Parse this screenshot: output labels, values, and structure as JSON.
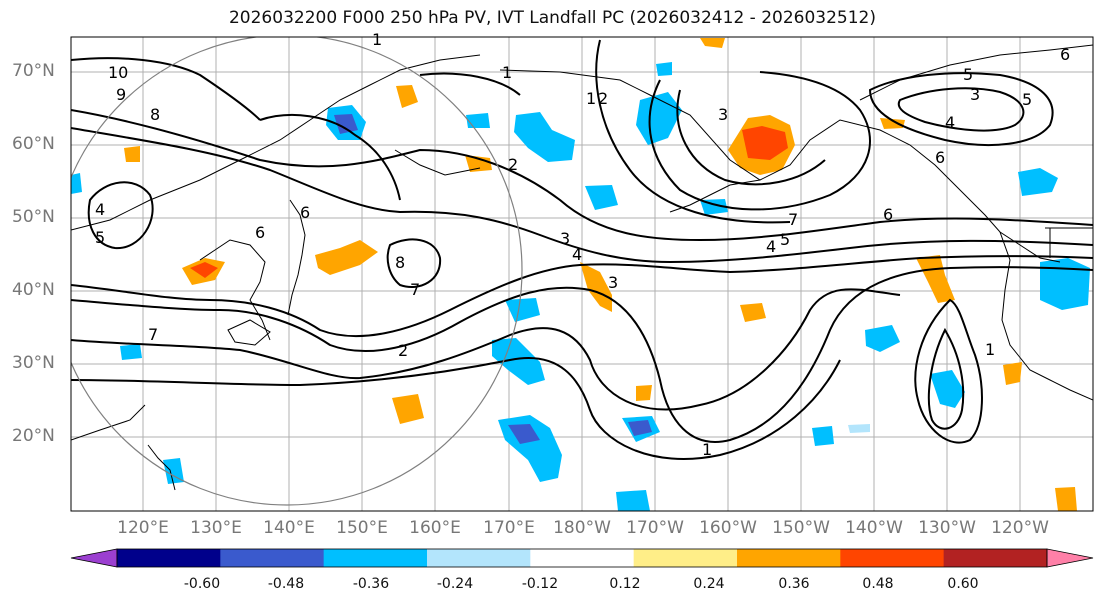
{
  "title": "2026032200 F000 250 hPa PV, IVT Landfall PC (2026032412 - 2026032512)",
  "latitude_labels": [
    "70°N",
    "60°N",
    "50°N",
    "40°N",
    "30°N",
    "20°N"
  ],
  "longitude_labels": [
    "120°E",
    "130°E",
    "140°E",
    "150°E",
    "160°E",
    "170°E",
    "180°W",
    "170°W",
    "160°W",
    "150°W",
    "140°W",
    "130°W",
    "120°W"
  ],
  "contour_labels": [
    "10",
    "9",
    "8",
    "4",
    "5",
    "6",
    "7",
    "6",
    "8",
    "2",
    "1",
    "2",
    "3",
    "4",
    "3",
    "1",
    "2",
    "1",
    "5",
    "6",
    "7",
    "6",
    "4",
    "5",
    "3",
    "5",
    "4",
    "6",
    "3",
    "7",
    "1",
    "1"
  ],
  "colorbar": {
    "ticks": [
      "-0.60",
      "-0.48",
      "-0.36",
      "-0.24",
      "-0.12",
      "0.12",
      "0.24",
      "0.36",
      "0.48",
      "0.60"
    ],
    "colors": [
      "#9b3fd0",
      "#00008b",
      "#3a5acd",
      "#00bfff",
      "#b3e5fc",
      "#ffffff",
      "#ffee88",
      "#ffa500",
      "#ff4500",
      "#b22222",
      "#ff80a8"
    ]
  }
}
